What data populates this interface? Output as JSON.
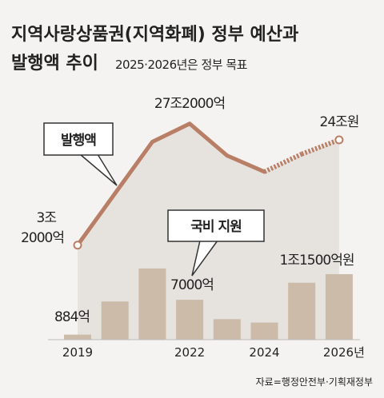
{
  "chart_data": {
    "type": "bar-line",
    "title": "지역사랑상품권(지역화폐) 정부 예산과",
    "title_line2": "발행액 추이",
    "subtitle": "2025·2026년은 정부 목표",
    "source": "자료=행정안전부·기획재정부",
    "categories": [
      "2019",
      null,
      null,
      "2022",
      null,
      "2024",
      null,
      "2026년"
    ],
    "series": [
      {
        "name": "발행액",
        "type": "line",
        "color": "#b97e66",
        "values": [
          32000,
          134000,
          236000,
          272000,
          209000,
          177000,
          212000,
          240000
        ],
        "value_labels": [
          [
            "3조",
            "2000억"
          ],
          null,
          null,
          "27조2000억",
          null,
          null,
          null,
          "24조원"
        ],
        "projected": [
          false,
          false,
          false,
          false,
          false,
          false,
          true,
          true
        ],
        "ylim": [
          0,
          300000
        ]
      },
      {
        "name": "국비 지원",
        "type": "bar",
        "color": "#cbbba8",
        "values": [
          884,
          6700,
          12500,
          7000,
          3600,
          3000,
          10000,
          11500
        ],
        "value_labels": [
          "884억",
          null,
          null,
          "7000억",
          null,
          null,
          null,
          "1조1500억원"
        ],
        "ylim": [
          0,
          40000
        ]
      }
    ]
  }
}
